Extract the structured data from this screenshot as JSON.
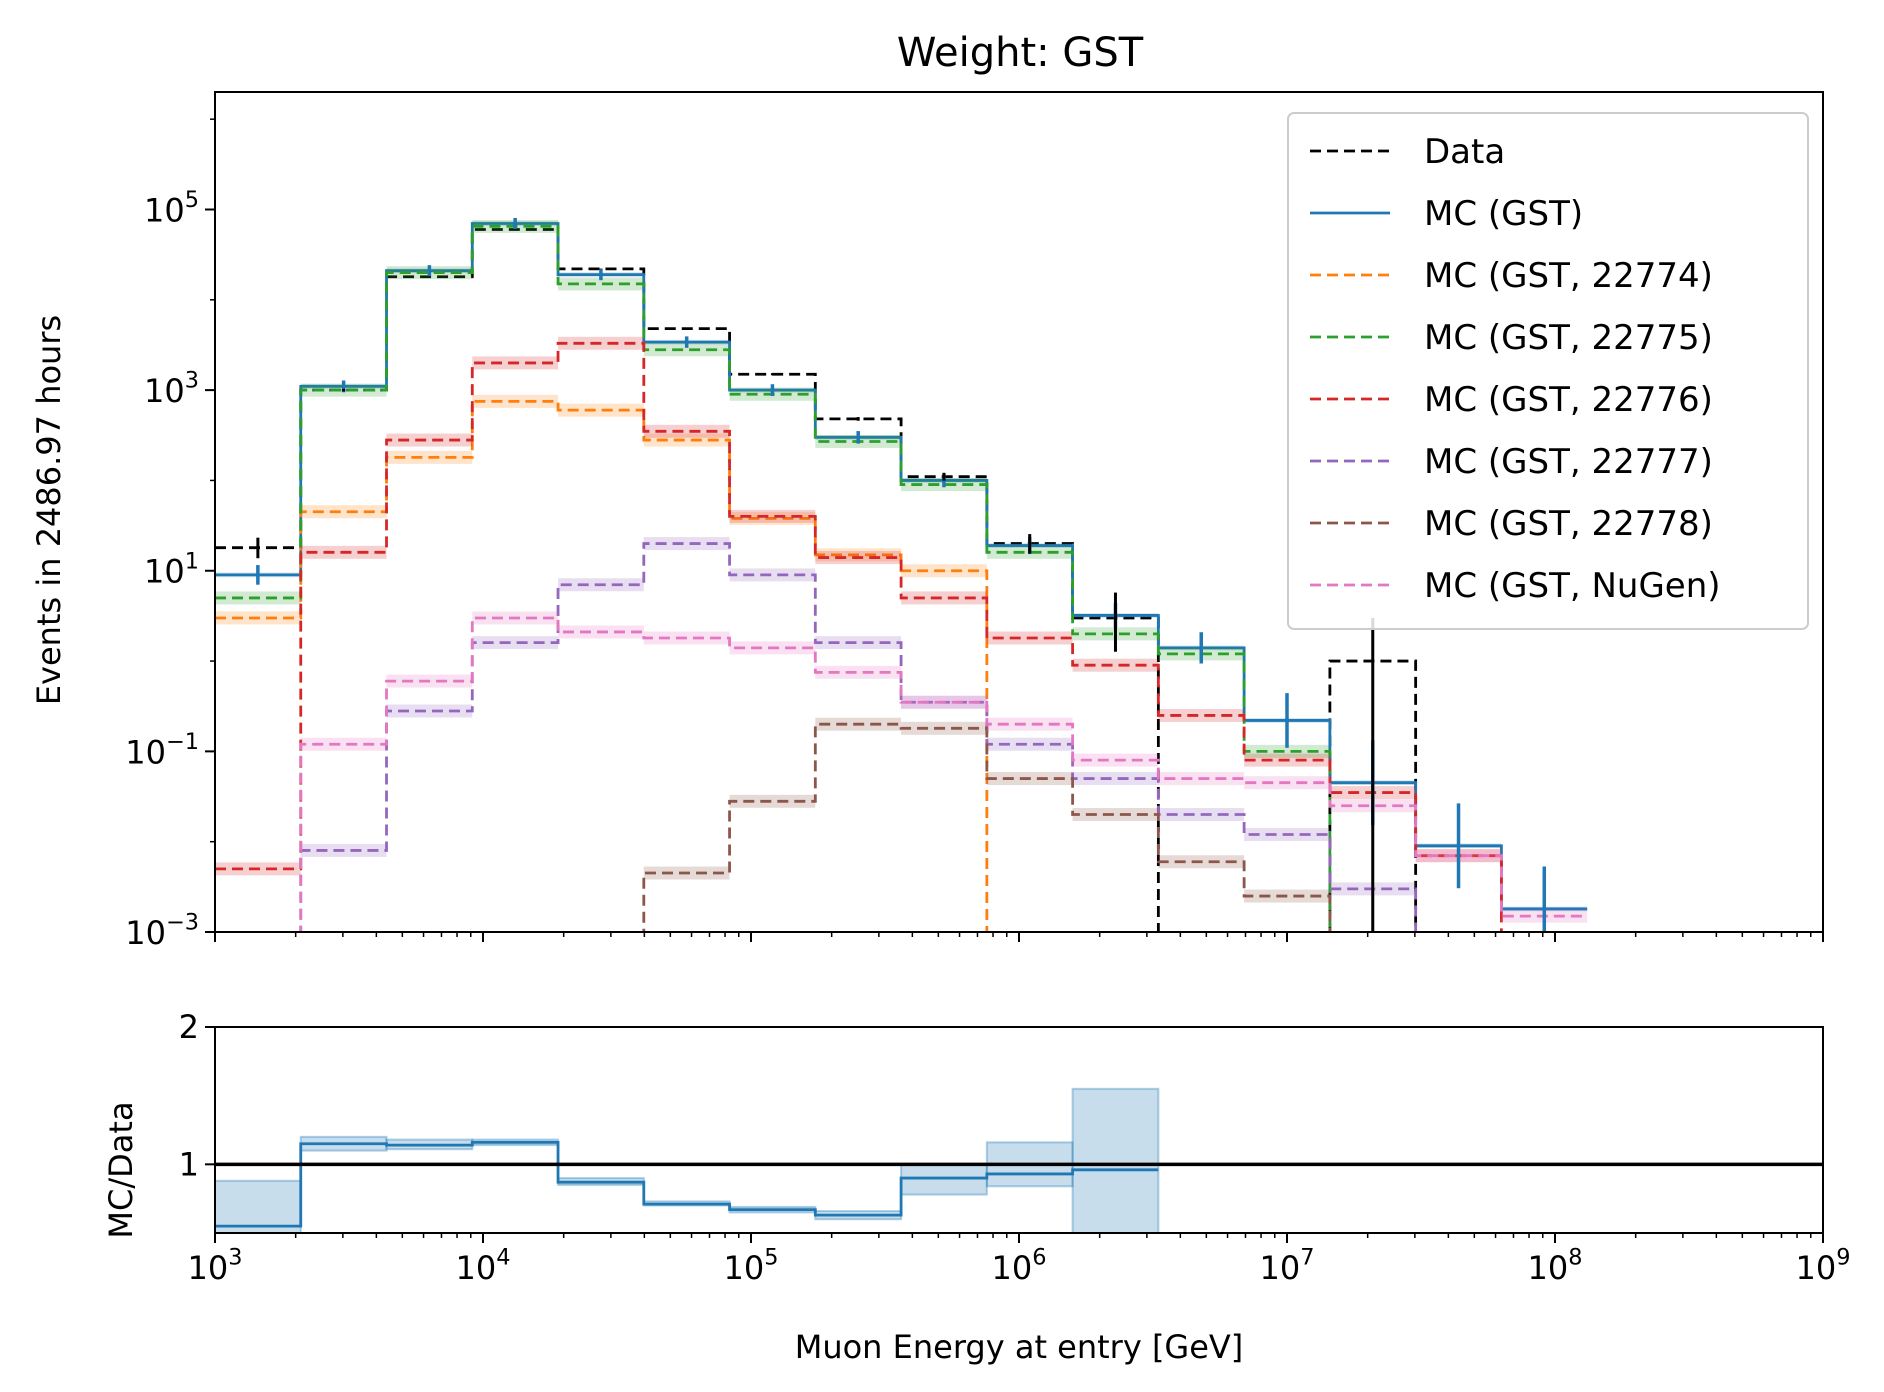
{
  "chart_data": [
    {
      "type": "line",
      "title": "Weight: GST",
      "ylabel": "Events in 2486.97 hours",
      "xscale": "log",
      "yscale": "log",
      "xlim": [
        1000,
        1000000000
      ],
      "ylim": [
        0.001,
        2000000
      ],
      "yticks": [
        {
          "value": 0.001,
          "base": "10",
          "exp": "−3"
        },
        {
          "value": 0.1,
          "base": "10",
          "exp": "−1"
        },
        {
          "value": 10,
          "base": "10",
          "exp": "1"
        },
        {
          "value": 1000,
          "base": "10",
          "exp": "3"
        },
        {
          "value": 100000,
          "base": "10",
          "exp": "5"
        }
      ],
      "legend_position": "top-right",
      "bin_edges": [
        1000,
        2089,
        4365,
        9120,
        19055,
        39811,
        83176,
        173780,
        363078,
        758578,
        1584893,
        3311311,
        6918310,
        14454398,
        30199517,
        63095734,
        131825674
      ],
      "series": [
        {
          "name": "Data",
          "color": "#000000",
          "style": "dashed",
          "values": [
            18,
            1000,
            18000,
            60000,
            22000,
            4800,
            1500,
            480,
            110,
            20,
            3,
            0,
            0,
            1,
            0,
            0
          ]
        },
        {
          "name": "MC (GST)",
          "color": "#1f77b4",
          "style": "solid",
          "values": [
            9,
            1100,
            21000,
            70000,
            19000,
            3400,
            1000,
            300,
            100,
            19,
            3.2,
            1.4,
            0.22,
            0.045,
            0.009,
            0.0018
          ]
        },
        {
          "name": "MC (GST, 22774)",
          "color": "#ff7f0e",
          "style": "dashed",
          "values": [
            3,
            45,
            180,
            750,
            600,
            280,
            38,
            15,
            10,
            0,
            0,
            0,
            0,
            0,
            0,
            0
          ]
        },
        {
          "name": "MC (GST, 22775)",
          "color": "#2ca02c",
          "style": "dashed",
          "values": [
            5,
            1000,
            20000,
            65000,
            15000,
            2800,
            900,
            270,
            90,
            16,
            2,
            1.2,
            0.1,
            0,
            0,
            0
          ]
        },
        {
          "name": "MC (GST, 22776)",
          "color": "#d62728",
          "style": "dashed",
          "values": [
            0.005,
            16,
            280,
            2000,
            3300,
            350,
            40,
            14,
            5,
            1.8,
            0.9,
            0.25,
            0.08,
            0.035,
            0.007,
            0
          ]
        },
        {
          "name": "MC (GST, 22777)",
          "color": "#9467bd",
          "style": "dashed",
          "values": [
            0,
            0.008,
            0.28,
            1.6,
            7,
            20,
            9,
            1.6,
            0.35,
            0.12,
            0.05,
            0.02,
            0.012,
            0.003,
            0,
            0
          ]
        },
        {
          "name": "MC (GST, 22778)",
          "color": "#8c564b",
          "style": "dashed",
          "values": [
            0,
            0,
            0,
            0,
            0,
            0.0045,
            0.028,
            0.2,
            0.18,
            0.05,
            0.02,
            0.006,
            0.0025,
            0,
            0,
            0
          ]
        },
        {
          "name": "MC (GST, NuGen)",
          "color": "#e377c2",
          "style": "dashed",
          "values": [
            0,
            0.12,
            0.6,
            3,
            2.1,
            1.8,
            1.4,
            0.75,
            0.35,
            0.2,
            0.08,
            0.05,
            0.045,
            0.025,
            0.007,
            0.0015
          ]
        }
      ]
    },
    {
      "type": "line",
      "xlabel": "Muon Energy at entry [GeV]",
      "ylabel": "MC/Data",
      "xscale": "log",
      "xlim": [
        1000,
        1000000000
      ],
      "ylim": [
        0.5,
        2
      ],
      "yticks": [
        1,
        2
      ],
      "xticks": [
        {
          "value": 1000,
          "base": "10",
          "exp": "3"
        },
        {
          "value": 10000,
          "base": "10",
          "exp": "4"
        },
        {
          "value": 100000,
          "base": "10",
          "exp": "5"
        },
        {
          "value": 1000000,
          "base": "10",
          "exp": "6"
        },
        {
          "value": 10000000,
          "base": "10",
          "exp": "7"
        },
        {
          "value": 100000000,
          "base": "10",
          "exp": "8"
        },
        {
          "value": 1000000000,
          "base": "10",
          "exp": "9"
        }
      ],
      "reference_line": 1,
      "bin_edges": [
        1000,
        2089,
        4365,
        9120,
        19055,
        39811,
        83176,
        173780,
        363078,
        758578,
        1584893,
        3311311
      ],
      "ratio": [
        0.55,
        1.15,
        1.14,
        1.16,
        0.87,
        0.71,
        0.67,
        0.63,
        0.9,
        0.93,
        0.96
      ],
      "ratio_low": [
        0.5,
        1.1,
        1.11,
        1.14,
        0.85,
        0.7,
        0.65,
        0.6,
        0.78,
        0.84,
        0.5
      ],
      "ratio_high": [
        0.88,
        1.2,
        1.18,
        1.18,
        0.9,
        0.73,
        0.69,
        0.66,
        1.0,
        1.16,
        1.55
      ]
    }
  ]
}
